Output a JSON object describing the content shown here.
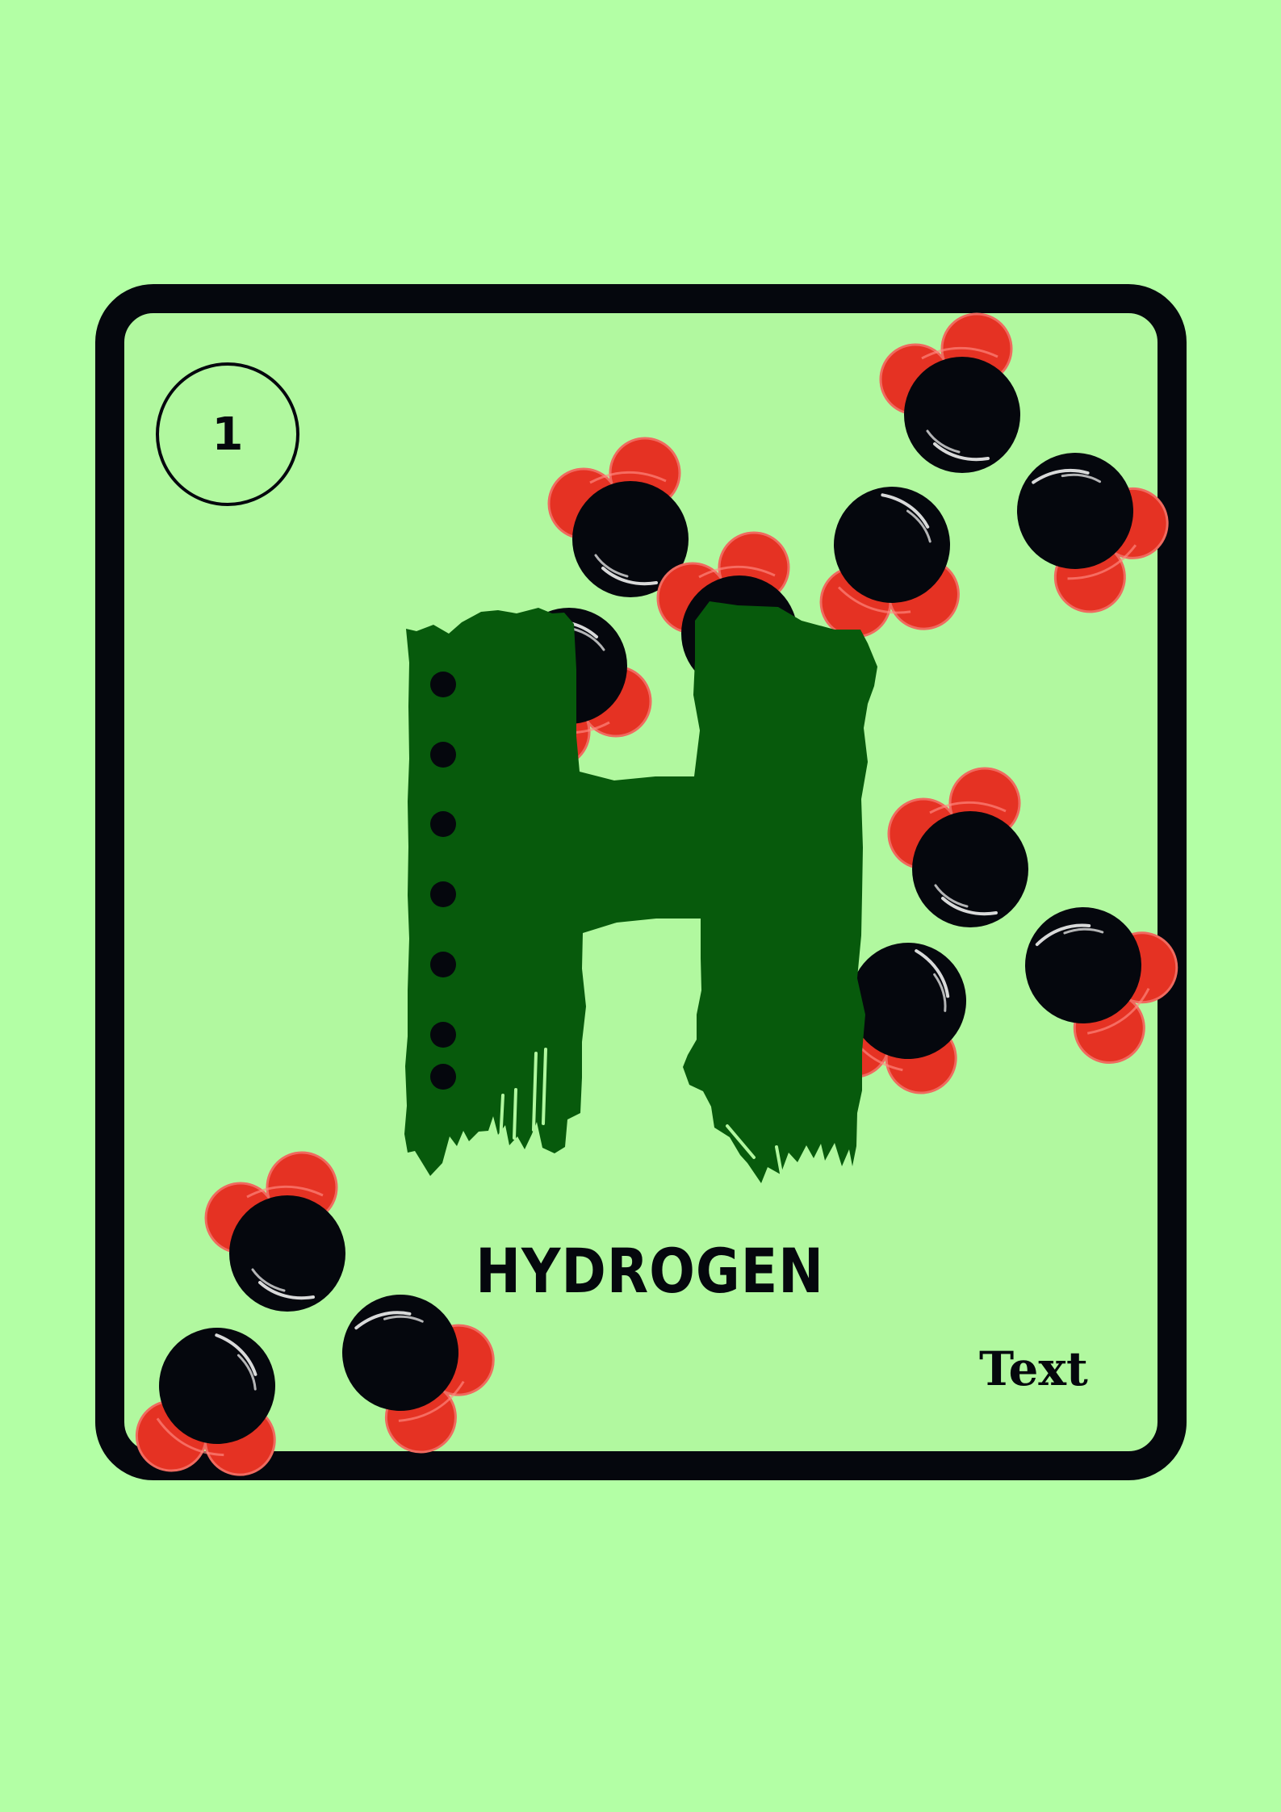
{
  "card": {
    "atomic_number": "1",
    "element_symbol": "H",
    "element_name": "HYDROGEN",
    "footer_text": "Text"
  },
  "colors": {
    "background": "#b3ffa5",
    "card_fill": "#b1f89f",
    "border": "#05070d",
    "symbol_green": "#075a0c",
    "atom_red": "#e53223",
    "atom_black": "#05070d"
  },
  "decorations": {
    "molecule_icon": "water-molecule-icon",
    "symbol_icon": "painted-letter-h"
  }
}
